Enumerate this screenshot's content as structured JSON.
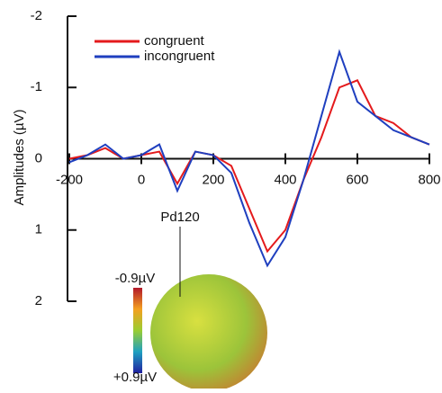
{
  "chart_data": {
    "type": "line",
    "y_label": "Amplitudes (µV)",
    "x": [
      -200,
      -150,
      -100,
      -50,
      0,
      50,
      100,
      150,
      200,
      250,
      300,
      350,
      400,
      450,
      500,
      550,
      600,
      650,
      700,
      750,
      800
    ],
    "series": [
      {
        "name": "congruent",
        "color": "#e41a1c",
        "values": [
          0.0,
          -0.05,
          -0.15,
          0.0,
          -0.05,
          -0.1,
          0.35,
          -0.1,
          -0.05,
          0.1,
          0.7,
          1.3,
          1.0,
          0.3,
          -0.3,
          -1.0,
          -1.1,
          -0.6,
          -0.5,
          -0.3,
          -0.2
        ]
      },
      {
        "name": "incongruent",
        "color": "#1f3fbf",
        "values": [
          0.05,
          -0.05,
          -0.2,
          0.0,
          -0.05,
          -0.2,
          0.45,
          -0.1,
          -0.05,
          0.2,
          0.9,
          1.5,
          1.1,
          0.3,
          -0.6,
          -1.5,
          -0.8,
          -0.6,
          -0.4,
          -0.3,
          -0.2
        ]
      }
    ],
    "xlim": [
      -200,
      800
    ],
    "xticks": [
      -200,
      0,
      200,
      400,
      600,
      800
    ],
    "ylim": [
      -2,
      2
    ],
    "yticks": [
      -2,
      -1,
      0,
      1,
      2
    ],
    "y_inverted": true,
    "annotations": [
      "Pd120",
      "-0.9µV",
      "+0.9µV"
    ]
  }
}
